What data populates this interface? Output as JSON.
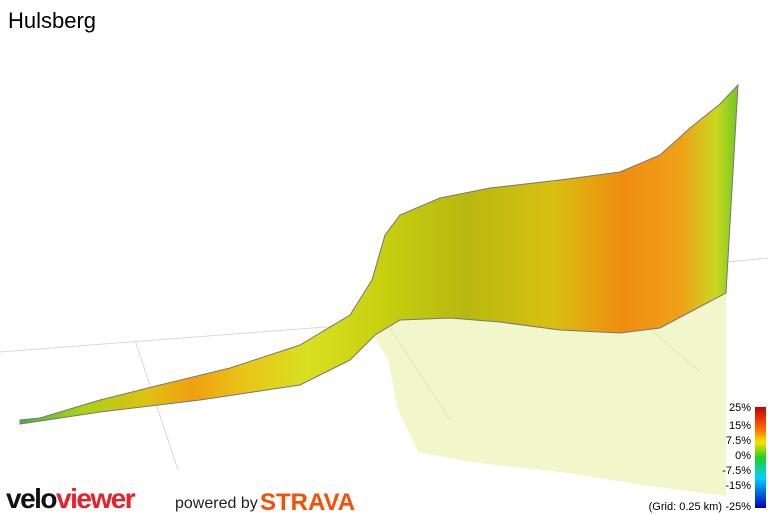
{
  "header": {
    "title": "Hulsberg"
  },
  "legend": {
    "labels": [
      "25%",
      "15%",
      "7.5%",
      "0%",
      "-7.5%",
      "-15%",
      "-25%"
    ],
    "grid_note": "(Grid: 0.25 km)"
  },
  "footer": {
    "brand_1": "velo",
    "brand_2": "viewer",
    "powered": "powered by",
    "partner": "STRAVA"
  }
}
